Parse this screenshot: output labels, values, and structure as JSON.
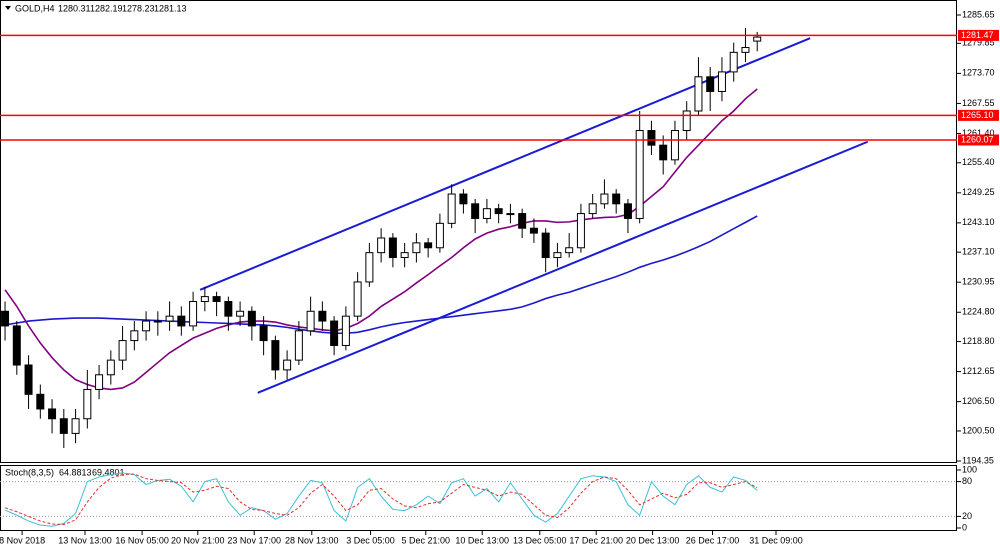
{
  "chart_data": [
    {
      "type": "candlestick",
      "title": "GOLD,H4",
      "up_color": "#ffffff",
      "down_color": "#000000",
      "ohlc": [
        [
          1225,
          1227,
          1219,
          1222
        ],
        [
          1222,
          1223,
          1212,
          1214
        ],
        [
          1214,
          1216,
          1205,
          1208
        ],
        [
          1208,
          1210,
          1203,
          1205
        ],
        [
          1205,
          1207,
          1200,
          1203
        ],
        [
          1203,
          1205,
          1197,
          1200
        ],
        [
          1200,
          1205,
          1198,
          1203
        ],
        [
          1203,
          1213,
          1201,
          1209
        ],
        [
          1209,
          1214,
          1207,
          1212
        ],
        [
          1212,
          1217,
          1210,
          1215
        ],
        [
          1215,
          1222,
          1213,
          1219
        ],
        [
          1219,
          1223,
          1217,
          1221
        ],
        [
          1221,
          1225,
          1219,
          1223
        ],
        [
          1223,
          1225,
          1220,
          1223
        ],
        [
          1223,
          1227,
          1221,
          1224
        ],
        [
          1224,
          1226,
          1220,
          1222
        ],
        [
          1222,
          1229,
          1221,
          1227
        ],
        [
          1227,
          1230,
          1225,
          1228
        ],
        [
          1228,
          1229,
          1224,
          1227
        ],
        [
          1227,
          1228,
          1221,
          1224
        ],
        [
          1224,
          1227,
          1222,
          1225
        ],
        [
          1225,
          1226,
          1219,
          1222
        ],
        [
          1222,
          1224,
          1216,
          1219
        ],
        [
          1219,
          1220,
          1211,
          1213
        ],
        [
          1213,
          1217,
          1211,
          1215
        ],
        [
          1215,
          1223,
          1214,
          1221
        ],
        [
          1221,
          1228,
          1220,
          1225
        ],
        [
          1225,
          1227,
          1221,
          1223
        ],
        [
          1223,
          1224,
          1216,
          1218
        ],
        [
          1218,
          1226,
          1217,
          1224
        ],
        [
          1224,
          1233,
          1223,
          1231
        ],
        [
          1231,
          1239,
          1230,
          1237
        ],
        [
          1237,
          1242,
          1235,
          1240
        ],
        [
          1240,
          1241,
          1234,
          1236
        ],
        [
          1236,
          1239,
          1234,
          1237
        ],
        [
          1237,
          1241,
          1235,
          1239
        ],
        [
          1239,
          1240,
          1236,
          1238
        ],
        [
          1238,
          1245,
          1237,
          1243
        ],
        [
          1243,
          1251,
          1242,
          1249
        ],
        [
          1249,
          1250,
          1245,
          1247
        ],
        [
          1247,
          1248,
          1241,
          1244
        ],
        [
          1244,
          1248,
          1243,
          1246
        ],
        [
          1246,
          1247,
          1243,
          1245
        ],
        [
          1245,
          1247,
          1243,
          1245
        ],
        [
          1245,
          1246,
          1240,
          1242
        ],
        [
          1242,
          1244,
          1239,
          1241
        ],
        [
          1241,
          1242,
          1233,
          1236
        ],
        [
          1236,
          1239,
          1234,
          1237
        ],
        [
          1237,
          1241,
          1236,
          1238
        ],
        [
          1238,
          1247,
          1237,
          1245
        ],
        [
          1245,
          1249,
          1244,
          1247
        ],
        [
          1247,
          1252,
          1246,
          1249
        ],
        [
          1249,
          1250,
          1245,
          1247
        ],
        [
          1247,
          1248,
          1241,
          1244
        ],
        [
          1244,
          1266,
          1243,
          1262
        ],
        [
          1262,
          1264,
          1257,
          1259
        ],
        [
          1259,
          1261,
          1253,
          1256
        ],
        [
          1256,
          1264,
          1255,
          1262
        ],
        [
          1262,
          1268,
          1260,
          1266
        ],
        [
          1266,
          1277,
          1265,
          1273
        ],
        [
          1273,
          1275,
          1266,
          1270
        ],
        [
          1270,
          1277,
          1268,
          1274
        ],
        [
          1274,
          1280,
          1272,
          1278
        ],
        [
          1278,
          1283,
          1276,
          1279
        ],
        [
          1280.31,
          1282.19,
          1278.23,
          1281.13
        ]
      ],
      "series": [
        {
          "color": "#800080",
          "values": [
            1229.4,
            1226,
            1222,
            1218.5,
            1215.5,
            1213,
            1211,
            1210,
            1209.3,
            1209,
            1209.3,
            1210.5,
            1212.5,
            1214.5,
            1216.5,
            1218,
            1219.5,
            1220.5,
            1221.5,
            1222.2,
            1222.8,
            1223,
            1223,
            1222.8,
            1222.2,
            1221.8,
            1221.5,
            1221.2,
            1221,
            1221.5,
            1222.5,
            1224,
            1226,
            1227.5,
            1229,
            1230.8,
            1232.5,
            1234.3,
            1236,
            1238,
            1239.8,
            1241,
            1241.8,
            1242.3,
            1243,
            1243.5,
            1243.5,
            1243.2,
            1243.3,
            1243.7,
            1244,
            1244.2,
            1244.3,
            1244.8,
            1246.5,
            1248.5,
            1250.5,
            1253.5,
            1256.5,
            1259,
            1261.5,
            1264,
            1266,
            1268.5,
            1270.5
          ]
        },
        {
          "color": "#1a1acc",
          "values": [
            1222.2,
            1222.6,
            1223,
            1223.2,
            1223.4,
            1223.5,
            1223.6,
            1223.6,
            1223.6,
            1223.5,
            1223.4,
            1223.3,
            1223.2,
            1223.1,
            1223,
            1222.9,
            1222.8,
            1222.7,
            1222.6,
            1222.5,
            1222.4,
            1222.3,
            1222.2,
            1222,
            1221.7,
            1221.3,
            1221,
            1220.7,
            1220.5,
            1220.5,
            1220.7,
            1221.2,
            1221.8,
            1222.3,
            1222.7,
            1223,
            1223.3,
            1223.6,
            1223.9,
            1224.2,
            1224.5,
            1224.8,
            1225.1,
            1225.4,
            1225.9,
            1226.7,
            1227.6,
            1228.3,
            1228.9,
            1229.7,
            1230.5,
            1231.3,
            1232.1,
            1233,
            1234,
            1234.8,
            1235.5,
            1236.3,
            1237.2,
            1238.2,
            1239.3,
            1240.6,
            1241.9,
            1243.2,
            1244.5
          ]
        }
      ],
      "trendlines": [
        {
          "color": "#1a1ad6",
          "x": [
            16.6,
            68.5
          ],
          "y": [
            1229.4,
            1280.9
          ]
        },
        {
          "color": "#1a1ad6",
          "x": [
            21.5,
            73.4
          ],
          "y": [
            1208.3,
            1259.7
          ]
        }
      ],
      "hlines": {
        "color": "#ff0000",
        "values": [
          1281.47,
          {
            "value": 1265.1,
            "label": "1265.10"
          },
          1260.07
        ]
      },
      "xlim": [
        -0.43,
        81
      ],
      "ylim": [
        1193.94,
        1288.72
      ],
      "yticks": [
        1285.65,
        1279.85,
        {
          "value": 1273.7,
          "label": "1273.70"
        },
        1267.55,
        {
          "value": 1261.4,
          "label": "1261.40"
        },
        {
          "value": 1255.4,
          "label": "1255.40"
        },
        1249.25,
        {
          "value": 1243.1,
          "label": "1243.10"
        },
        {
          "value": 1237.1,
          "label": "1237.10"
        },
        1230.95,
        {
          "value": 1224.8,
          "label": "1224.80"
        },
        {
          "value": 1218.8,
          "label": "1218.80"
        },
        1212.65,
        {
          "value": 1206.5,
          "label": "1206.50"
        },
        {
          "value": 1200.5,
          "label": "1200.50"
        },
        1194.35
      ]
    },
    {
      "type": "line",
      "title": "Stoch(8,3,5)",
      "series": [
        {
          "color": "#3cc0d8",
          "values": [
            31,
            22,
            12,
            5,
            3,
            8,
            25,
            80,
            88,
            92,
            95,
            92,
            75,
            82,
            84,
            72,
            45,
            80,
            85,
            45,
            22,
            35,
            30,
            15,
            25,
            55,
            82,
            78,
            30,
            12,
            70,
            85,
            55,
            32,
            30,
            40,
            55,
            42,
            78,
            85,
            55,
            68,
            45,
            78,
            50,
            22,
            10,
            25,
            55,
            85,
            90,
            88,
            80,
            40,
            22,
            80,
            55,
            40,
            75,
            90,
            70,
            62,
            88,
            82,
            64.8813
          ]
        },
        {
          "color": "#e0302a",
          "dashed": true,
          "values": [
            35,
            28,
            20,
            12,
            7,
            6,
            14,
            45,
            70,
            86,
            92,
            93,
            85,
            82,
            80,
            78,
            62,
            65,
            72,
            68,
            45,
            32,
            30,
            25,
            22,
            35,
            60,
            75,
            55,
            30,
            40,
            65,
            68,
            50,
            38,
            35,
            42,
            45,
            60,
            75,
            70,
            65,
            55,
            62,
            58,
            40,
            22,
            18,
            35,
            60,
            80,
            88,
            85,
            65,
            40,
            50,
            60,
            52,
            58,
            78,
            78,
            70,
            75,
            80,
            69.4801
          ]
        }
      ],
      "xlim": [
        -0.43,
        81
      ],
      "ylim": [
        0,
        100
      ],
      "yticks": [
        100,
        80,
        20,
        0
      ],
      "xticks": [
        {
          "value": 1.45,
          "label": "8 Nov 2018"
        },
        {
          "value": 6.8,
          "label": "13 Nov 13:00"
        },
        {
          "value": 11.66,
          "label": "16 Nov 05:00"
        },
        {
          "value": 16.4,
          "label": "20 Nov 21:00"
        },
        {
          "value": 21.2,
          "label": "23 Nov 17:00"
        },
        {
          "value": 26.1,
          "label": "28 Nov 13:00"
        },
        {
          "value": 31.1,
          "label": "3 Dec 05:00"
        },
        {
          "value": 35.8,
          "label": "5 Dec 21:00"
        },
        {
          "value": 40.6,
          "label": "10 Dec 13:00"
        },
        {
          "value": 45.5,
          "label": "13 Dec 05:00"
        },
        {
          "value": 50.3,
          "label": "17 Dec 21:00"
        },
        {
          "value": 55.1,
          "label": "20 Dec 13:00"
        },
        {
          "value": 60.2,
          "label": "26 Dec 17:00"
        },
        {
          "value": 65.6,
          "label": "31 Dec 09:00"
        }
      ]
    }
  ]
}
